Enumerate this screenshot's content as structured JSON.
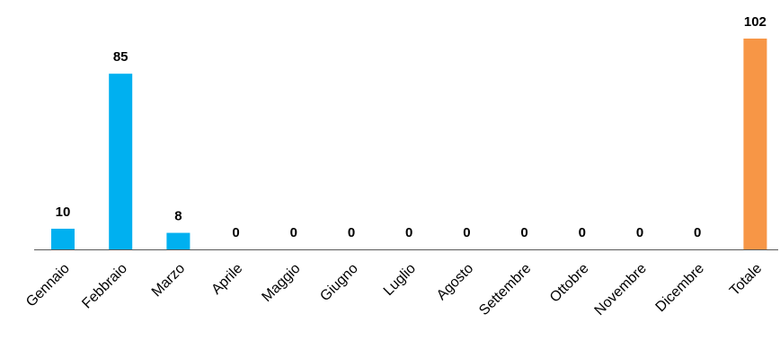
{
  "chart_data": {
    "type": "bar",
    "categories": [
      "Gennaio",
      "Febbraio",
      "Marzo",
      "Aprile",
      "Maggio",
      "Giugno",
      "Luglio",
      "Agosto",
      "Settembre",
      "Ottobre",
      "Novembre",
      "Dicembre",
      "Totale"
    ],
    "values": [
      10,
      85,
      8,
      0,
      0,
      0,
      0,
      0,
      0,
      0,
      0,
      0,
      102
    ],
    "data_labels": [
      "10",
      "85",
      "8",
      "0",
      "0",
      "0",
      "0",
      "0",
      "0",
      "0",
      "0",
      "0",
      "102"
    ],
    "colors": {
      "monthly": "#00B0F0",
      "total": "#F79646",
      "axis": "#595959"
    },
    "title": "",
    "xlabel": "",
    "ylabel": "",
    "ylim": [
      0,
      102
    ],
    "grid": false,
    "legend": "none"
  }
}
